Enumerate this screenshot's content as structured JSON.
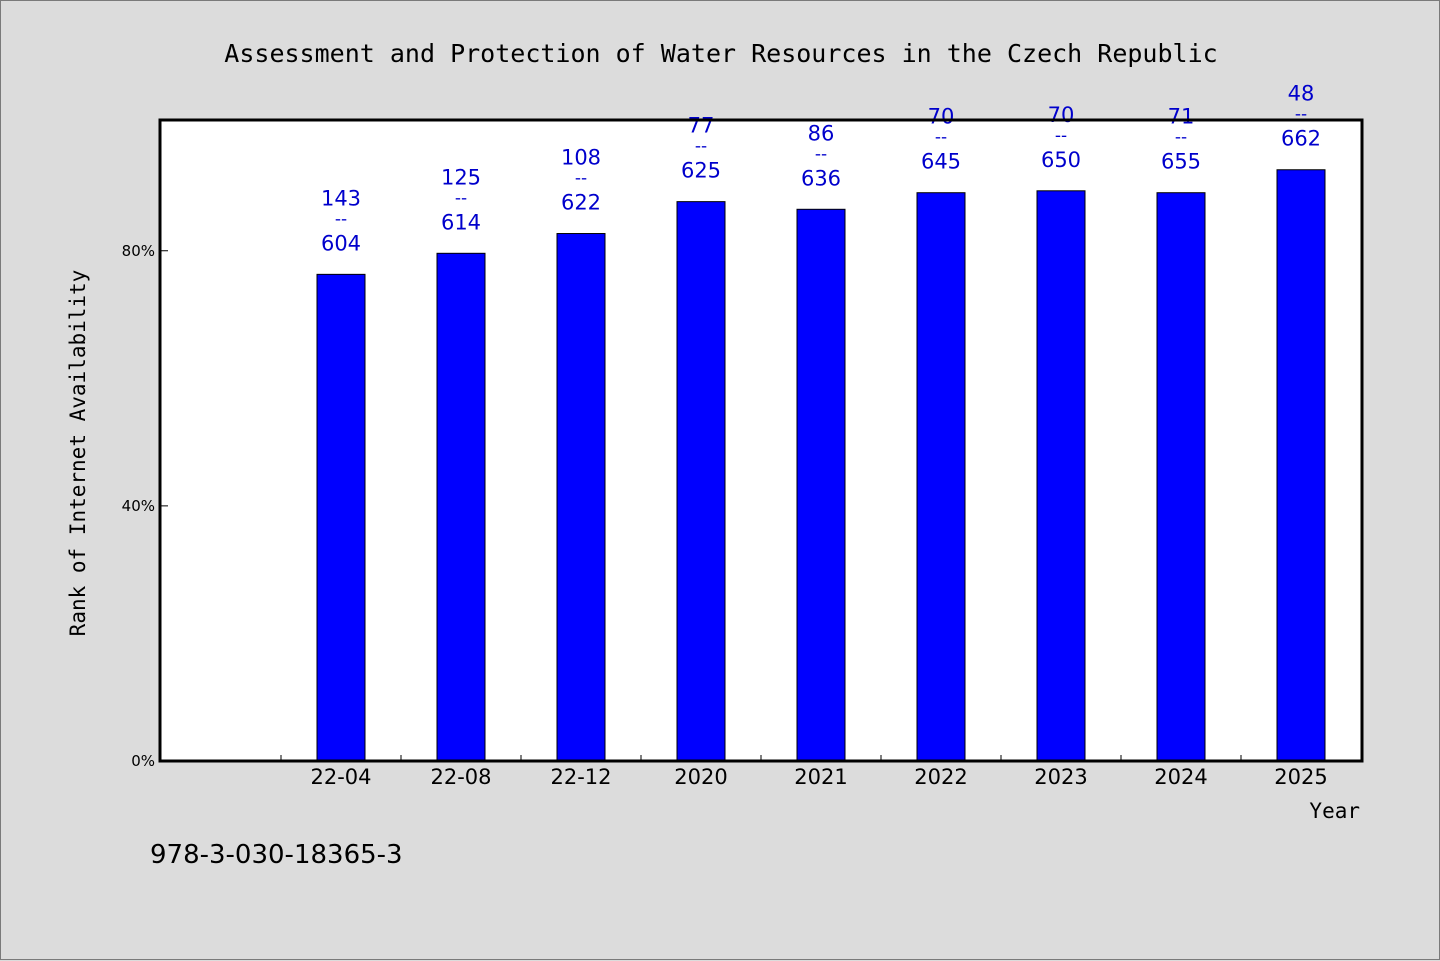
{
  "chart_data": {
    "type": "bar",
    "title": "Assessment and Protection of Water Resources in the Czech Republic",
    "xlabel": "Year",
    "ylabel": "Rank of Internet Availability",
    "categories": [
      "22-04",
      "22-08",
      "22-12",
      "2020",
      "2021",
      "2022",
      "2023",
      "2024",
      "2025"
    ],
    "values": [
      76.3,
      79.6,
      82.7,
      87.7,
      86.5,
      89.1,
      89.4,
      89.1,
      92.7
    ],
    "value_labels": [
      [
        "143",
        "--",
        "604"
      ],
      [
        "125",
        "--",
        "614"
      ],
      [
        "108",
        "--",
        "622"
      ],
      [
        "77",
        "--",
        "625"
      ],
      [
        "86",
        "--",
        "636"
      ],
      [
        "70",
        "--",
        "645"
      ],
      [
        "70",
        "--",
        "650"
      ],
      [
        "71",
        "--",
        "655"
      ],
      [
        "48",
        "--",
        "662"
      ]
    ],
    "yticks": [
      0,
      40,
      80
    ],
    "ytick_labels": [
      "0%",
      "40%",
      "80%"
    ],
    "ylim": [
      0,
      100.5
    ],
    "grid": false,
    "legend": "none",
    "bar_color": "#0000ff",
    "label_color": "#0000cc"
  },
  "footer": {
    "isbn": "978-3-030-18365-3"
  }
}
